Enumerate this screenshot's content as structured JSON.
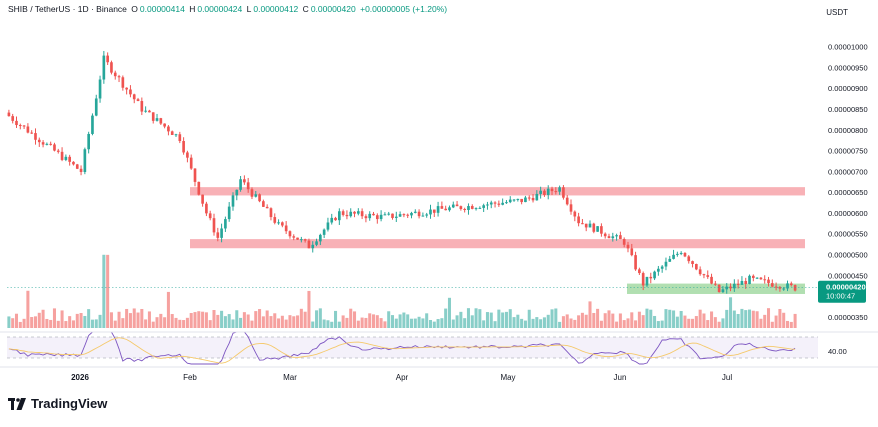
{
  "header": {
    "symbol": "SHIB / TetherUS · 1D · Binance",
    "o_label": "O",
    "o": "0.00000414",
    "h_label": "H",
    "h": "0.00000424",
    "l_label": "L",
    "l": "0.00000412",
    "c_label": "C",
    "c": "0.00000420",
    "change": "+0.00000005 (+1.20%)"
  },
  "currency": "USDT",
  "price_label": {
    "value": "0.00000420",
    "countdown": "10:00:47"
  },
  "rsi_label": "40.00",
  "brand": "TradingView",
  "colors": {
    "up": "#26a69a",
    "down": "#ef5350",
    "resistance": "#f7a8ae",
    "support": "#a8dca8",
    "rsi": "#7e57c2",
    "rsi_ma": "#f5c96b"
  },
  "chart_data": {
    "type": "candlestick",
    "y_ticks": [
      "0.00000350",
      "0.00000450",
      "0.00000500",
      "0.00000550",
      "0.00000600",
      "0.00000650",
      "0.00000700",
      "0.00000750",
      "0.00000800",
      "0.00000850",
      "0.00000900",
      "0.00000950",
      "0.00001000"
    ],
    "ylim": [
      3.4e-06,
      1.04e-05
    ],
    "x_ticks": [
      "2026",
      "Feb",
      "Mar",
      "Apr",
      "May",
      "Jun",
      "Jul"
    ],
    "zones": [
      {
        "kind": "resistance",
        "from_month": "Feb",
        "to": "end",
        "low": 6.42e-06,
        "high": 6.62e-06
      },
      {
        "kind": "resistance",
        "from_month": "Feb",
        "to": "end",
        "low": 5.15e-06,
        "high": 5.37e-06
      },
      {
        "kind": "support",
        "from_month": "Jun",
        "to": "end",
        "low": 4.05e-06,
        "high": 4.3e-06
      }
    ],
    "close_price": 4.2e-06,
    "segments": [
      {
        "from": 8.4e-06,
        "to": 7e-06,
        "n": 20
      },
      {
        "from": 7e-06,
        "to": 9.7e-06,
        "n": 6
      },
      {
        "from": 9.7e-06,
        "to": 8.5e-06,
        "n": 10
      },
      {
        "from": 8.5e-06,
        "to": 7.8e-06,
        "n": 10
      },
      {
        "from": 7.8e-06,
        "to": 6e-06,
        "n": 7
      },
      {
        "from": 6e-06,
        "to": 5.4e-06,
        "n": 3
      },
      {
        "from": 5.4e-06,
        "to": 6.8e-06,
        "n": 6
      },
      {
        "from": 6.8e-06,
        "to": 5.7e-06,
        "n": 10
      },
      {
        "from": 5.7e-06,
        "to": 5.2e-06,
        "n": 8
      },
      {
        "from": 5.2e-06,
        "to": 6e-06,
        "n": 8
      },
      {
        "from": 6e-06,
        "to": 5.9e-06,
        "n": 12
      },
      {
        "from": 5.9e-06,
        "to": 6.1e-06,
        "n": 16
      },
      {
        "from": 6.1e-06,
        "to": 6.3e-06,
        "n": 20
      },
      {
        "from": 6.3e-06,
        "to": 6.6e-06,
        "n": 10
      },
      {
        "from": 6.6e-06,
        "to": 5.8e-06,
        "n": 5
      },
      {
        "from": 5.8e-06,
        "to": 5.3e-06,
        "n": 12
      },
      {
        "from": 5.3e-06,
        "to": 4.3e-06,
        "n": 5
      },
      {
        "from": 4.3e-06,
        "to": 5.1e-06,
        "n": 10
      },
      {
        "from": 5.1e-06,
        "to": 4.1e-06,
        "n": 10
      },
      {
        "from": 4.1e-06,
        "to": 4.4e-06,
        "n": 8
      },
      {
        "from": 4.4e-06,
        "to": 4.2e-06,
        "n": 12
      }
    ]
  }
}
